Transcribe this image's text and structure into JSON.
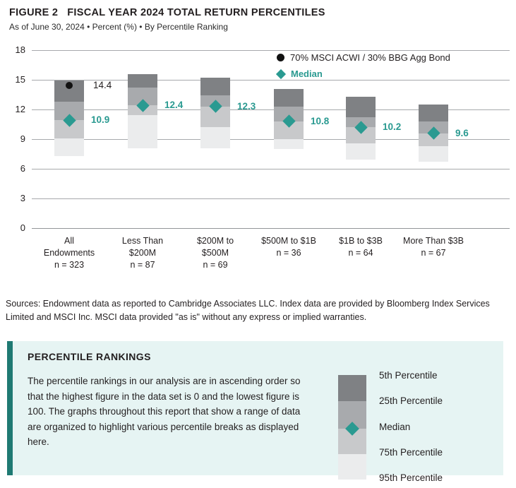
{
  "figure": {
    "title": "FIGURE 2   FISCAL YEAR 2024 TOTAL RETURN PERCENTILES",
    "subtitle": "As of June 30, 2024 • Percent (%) • By Percentile Ranking"
  },
  "chart_data": {
    "type": "bar",
    "subtype": "floating-percentile-range-bars",
    "title": "Fiscal Year 2024 Total Return Percentiles",
    "ylabel": "Percent (%)",
    "ylim": [
      0,
      18
    ],
    "yticks": [
      18,
      15,
      12,
      9,
      6,
      3,
      0
    ],
    "grid": true,
    "legend_position": "top-right",
    "legend": [
      {
        "marker": "circle",
        "color": "#111111",
        "label": "70% MSCI ACWI / 30% BBG Agg Bond"
      },
      {
        "marker": "diamond",
        "color": "#2a9a91",
        "label": "Median"
      }
    ],
    "segment_order": [
      "5th-25th",
      "25th-median",
      "median-75th",
      "75th-95th"
    ],
    "segment_colors": [
      "#7f8184",
      "#a8aaad",
      "#c8c9cb",
      "#ebeced"
    ],
    "categories": [
      {
        "label_lines": [
          "All",
          "Endowments"
        ],
        "n_label": "n = 323",
        "p5": 14.9,
        "p25": 12.8,
        "median": 10.9,
        "p75": 9.1,
        "p95": 7.3,
        "median_label": "10.9",
        "benchmark": 14.4,
        "benchmark_label": "14.4"
      },
      {
        "label_lines": [
          "Less Than",
          "$200M"
        ],
        "n_label": "n = 87",
        "p5": 15.6,
        "p25": 14.2,
        "median": 12.4,
        "p75": 11.4,
        "p95": 8.1,
        "median_label": "12.4"
      },
      {
        "label_lines": [
          "$200M to",
          "$500M"
        ],
        "n_label": "n = 69",
        "p5": 15.2,
        "p25": 13.4,
        "median": 12.3,
        "p75": 10.2,
        "p95": 8.1,
        "median_label": "12.3"
      },
      {
        "label_lines": [
          "$500M to $1B"
        ],
        "n_label": "n = 36",
        "p5": 14.1,
        "p25": 12.3,
        "median": 10.8,
        "p75": 9.0,
        "p95": 8.0,
        "median_label": "10.8"
      },
      {
        "label_lines": [
          "$1B to $3B"
        ],
        "n_label": "n = 64",
        "p5": 13.3,
        "p25": 11.2,
        "median": 10.2,
        "p75": 8.6,
        "p95": 6.9,
        "median_label": "10.2"
      },
      {
        "label_lines": [
          "More Than $3B"
        ],
        "n_label": "n = 67",
        "p5": 12.5,
        "p25": 10.8,
        "median": 9.6,
        "p75": 8.3,
        "p95": 6.7,
        "median_label": "9.6"
      }
    ]
  },
  "sources": "Sources: Endowment data as reported to Cambridge Associates LLC. Index data are provided by Bloomberg Index Services Limited and MSCI Inc. MSCI data provided \"as is\" without any express or implied warranties.",
  "panel": {
    "title": "PERCENTILE RANKINGS",
    "body": "The percentile rankings in our analysis are in ascending order so that the highest figure in the data set is 0 and the lowest figure is 100. The graphs throughout this report that show a range of data are organized to highlight various percentile breaks as displayed here.",
    "legend_labels": [
      "5th Percentile",
      "25th Percentile",
      "Median",
      "75th Percentile",
      "95th Percentile"
    ]
  },
  "colors": {
    "teal": "#2a9a91",
    "panel_accent": "#1f7a73",
    "panel_bg": "#e6f4f3",
    "benchmark_dot": "#111111",
    "gridline": "#a7a9ac",
    "segment_5th_25th": "#7f8184",
    "segment_25th_median": "#a8aaad",
    "segment_median_75th": "#c8c9cb",
    "segment_75th_95th": "#ebeced"
  }
}
